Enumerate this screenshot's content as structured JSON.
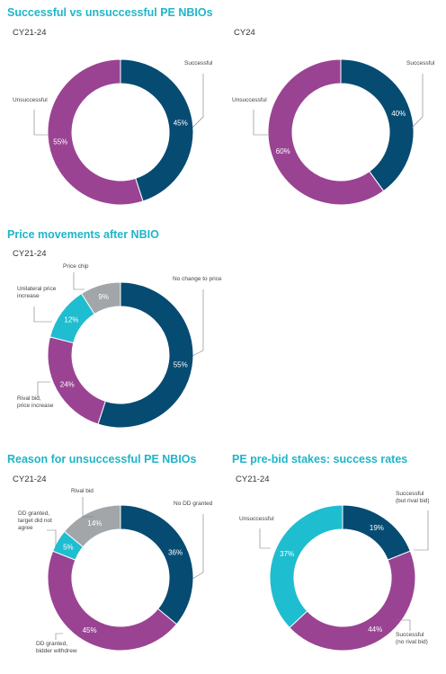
{
  "colors": {
    "navy": "#064b72",
    "purple": "#9a4393",
    "teal": "#1fbdd0",
    "grey": "#a2a6a8",
    "title": "#1fb5c8"
  },
  "titles": {
    "main": "Successful vs unsuccessful PE NBIOs",
    "price": "Price movements after NBIO",
    "reason": "Reason for unsuccessful PE NBIOs",
    "stakes": "PE pre-bid stakes: success rates"
  },
  "chart_data": [
    {
      "type": "pie",
      "subtitle": "CY21-24",
      "slices": [
        {
          "label": "Successful",
          "value": 45,
          "display": "45%",
          "color": "navy"
        },
        {
          "label": "Unsuccessful",
          "value": 55,
          "display": "55%",
          "color": "purple"
        }
      ]
    },
    {
      "type": "pie",
      "subtitle": "CY24",
      "slices": [
        {
          "label": "Successful",
          "value": 40,
          "display": "40%",
          "color": "navy"
        },
        {
          "label": "Unsuccessful",
          "value": 60,
          "display": "60%",
          "color": "purple"
        }
      ]
    },
    {
      "type": "pie",
      "subtitle": "CY21-24",
      "slices": [
        {
          "label": "No change to price",
          "value": 55,
          "display": "55%",
          "color": "navy"
        },
        {
          "label": "Rival bid, price increase",
          "value": 24,
          "display": "24%",
          "color": "purple"
        },
        {
          "label": "Unilateral price increase",
          "value": 12,
          "display": "12%",
          "color": "teal"
        },
        {
          "label": "Price chip",
          "value": 9,
          "display": "9%",
          "color": "grey"
        }
      ]
    },
    {
      "type": "pie",
      "subtitle": "CY21-24",
      "slices": [
        {
          "label": "No DD granted",
          "value": 36,
          "display": "36%",
          "color": "navy"
        },
        {
          "label": "DD granted, bidder withdrew",
          "value": 45,
          "display": "45%",
          "color": "purple"
        },
        {
          "label": "DD granted, target did not agree",
          "value": 5,
          "display": "5%",
          "color": "teal"
        },
        {
          "label": "Rival bid",
          "value": 14,
          "display": "14%",
          "color": "grey"
        }
      ]
    },
    {
      "type": "pie",
      "subtitle": "CY21-24",
      "slices": [
        {
          "label": "Successful (but rival bid)",
          "value": 19,
          "display": "19%",
          "color": "navy"
        },
        {
          "label": "Successful (no rival bid)",
          "value": 44,
          "display": "44%",
          "color": "purple"
        },
        {
          "label": "Unsuccessful",
          "value": 37,
          "display": "37%",
          "color": "teal"
        }
      ]
    }
  ]
}
